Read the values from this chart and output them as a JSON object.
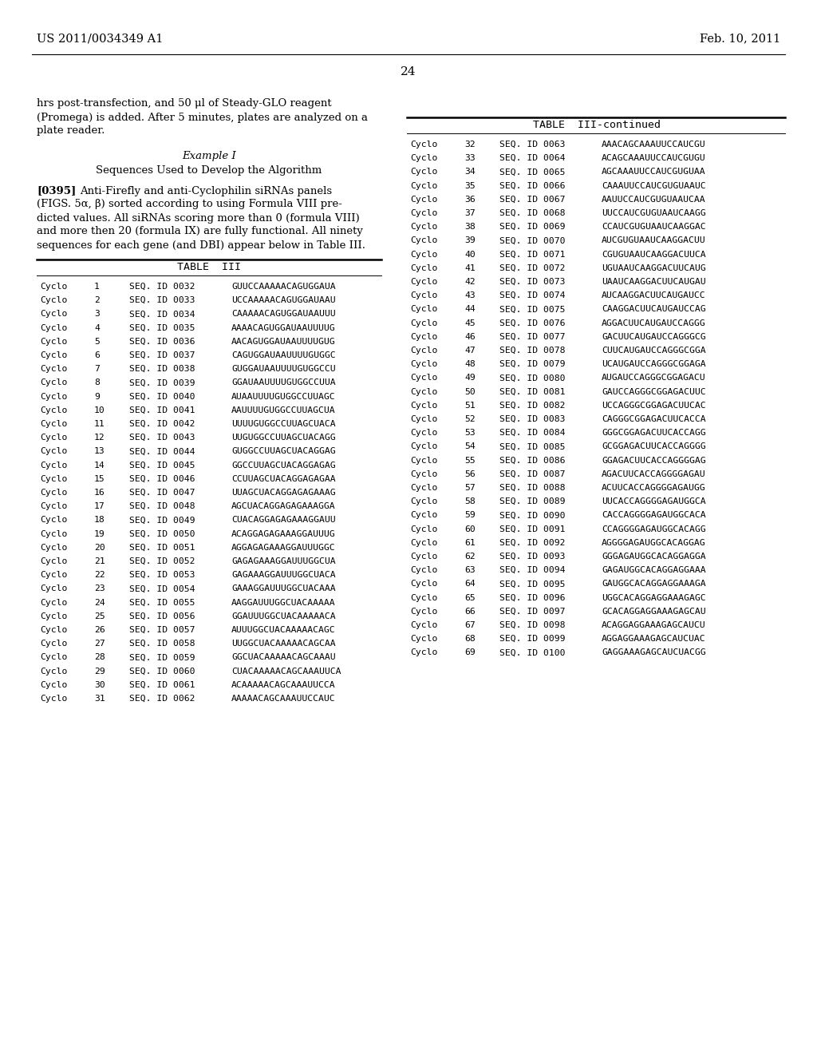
{
  "background_color": "#ffffff",
  "page_number": "24",
  "header_left": "US 2011/0034349 A1",
  "header_right": "Feb. 10, 2011",
  "left_table_rows": [
    [
      "Cyclo",
      "1",
      "SEQ. ID 0032",
      "GUUCCAAAAACAGUGGAUA"
    ],
    [
      "Cyclo",
      "2",
      "SEQ. ID 0033",
      "UCCAAAAACAGUGGAUAAU"
    ],
    [
      "Cyclo",
      "3",
      "SEQ. ID 0034",
      "CAAAAACAGUGGAUAAUUU"
    ],
    [
      "Cyclo",
      "4",
      "SEQ. ID 0035",
      "AAAACAGUGGAUAAUUUUG"
    ],
    [
      "Cyclo",
      "5",
      "SEQ. ID 0036",
      "AACAGUGGAUAAUUUUGUG"
    ],
    [
      "Cyclo",
      "6",
      "SEQ. ID 0037",
      "CAGUGGAUAAUUUUGUGGC"
    ],
    [
      "Cyclo",
      "7",
      "SEQ. ID 0038",
      "GUGGAUAAUUUUGUGGCCU"
    ],
    [
      "Cyclo",
      "8",
      "SEQ. ID 0039",
      "GGAUAAUUUUGUGGCCUUA"
    ],
    [
      "Cyclo",
      "9",
      "SEQ. ID 0040",
      "AUAAUUUUGUGGCCUUAGC"
    ],
    [
      "Cyclo",
      "10",
      "SEQ. ID 0041",
      "AAUUUUGUGGCCUUAGCUA"
    ],
    [
      "Cyclo",
      "11",
      "SEQ. ID 0042",
      "UUUUGUGGCCUUAGCUACA"
    ],
    [
      "Cyclo",
      "12",
      "SEQ. ID 0043",
      "UUGUGGCCUUAGCUACAGG"
    ],
    [
      "Cyclo",
      "13",
      "SEQ. ID 0044",
      "GUGGCCUUAGCUACAGGAG"
    ],
    [
      "Cyclo",
      "14",
      "SEQ. ID 0045",
      "GGCCUUAGCUACAGGAGAG"
    ],
    [
      "Cyclo",
      "15",
      "SEQ. ID 0046",
      "CCUUAGCUACAGGAGAGAA"
    ],
    [
      "Cyclo",
      "16",
      "SEQ. ID 0047",
      "UUAGCUACAGGAGAGAAAG"
    ],
    [
      "Cyclo",
      "17",
      "SEQ. ID 0048",
      "AGCUACAGGAGAGAAAGGA"
    ],
    [
      "Cyclo",
      "18",
      "SEQ. ID 0049",
      "CUACAGGAGAGAAAGGAUU"
    ],
    [
      "Cyclo",
      "19",
      "SEQ. ID 0050",
      "ACAGGAGAGAAAGGAUUUG"
    ],
    [
      "Cyclo",
      "20",
      "SEQ. ID 0051",
      "AGGAGAGAAAGGAUUUGGC"
    ],
    [
      "Cyclo",
      "21",
      "SEQ. ID 0052",
      "GAGAGAAAGGAUUUGGCUA"
    ],
    [
      "Cyclo",
      "22",
      "SEQ. ID 0053",
      "GAGAAAGGAUUUGGCUACA"
    ],
    [
      "Cyclo",
      "23",
      "SEQ. ID 0054",
      "GAAAGGAUUUGGCUACAAA"
    ],
    [
      "Cyclo",
      "24",
      "SEQ. ID 0055",
      "AAGGAUUUGGCUACAAAAA"
    ],
    [
      "Cyclo",
      "25",
      "SEQ. ID 0056",
      "GGAUUUGGCUACAAAAACA"
    ],
    [
      "Cyclo",
      "26",
      "SEQ. ID 0057",
      "AUUUGGCUACAAAAACAGC"
    ],
    [
      "Cyclo",
      "27",
      "SEQ. ID 0058",
      "UUGGCUACAAAAACAGCAA"
    ],
    [
      "Cyclo",
      "28",
      "SEQ. ID 0059",
      "GGCUACAAAAACAGCAAAU"
    ],
    [
      "Cyclo",
      "29",
      "SEQ. ID 0060",
      "CUACAAAAACAGCAAAUUCA"
    ],
    [
      "Cyclo",
      "30",
      "SEQ. ID 0061",
      "ACAAAAACAGCAAAUUCCA"
    ],
    [
      "Cyclo",
      "31",
      "SEQ. ID 0062",
      "AAAAACAGCAAAUUCCAUC"
    ]
  ],
  "right_table_rows": [
    [
      "Cyclo",
      "32",
      "SEQ. ID 0063",
      "AAACAGCAAAUUCCAUCGU"
    ],
    [
      "Cyclo",
      "33",
      "SEQ. ID 0064",
      "ACAGCAAAUUCCAUCGUGU"
    ],
    [
      "Cyclo",
      "34",
      "SEQ. ID 0065",
      "AGCAAAUUCCAUCGUGUAA"
    ],
    [
      "Cyclo",
      "35",
      "SEQ. ID 0066",
      "CAAAUUCCAUCGUGUAAUC"
    ],
    [
      "Cyclo",
      "36",
      "SEQ. ID 0067",
      "AAUUCCAUCGUGUAAUCAA"
    ],
    [
      "Cyclo",
      "37",
      "SEQ. ID 0068",
      "UUCCAUCGUGUAAUCAAGG"
    ],
    [
      "Cyclo",
      "38",
      "SEQ. ID 0069",
      "CCAUCGUGUAAUCAAGGAC"
    ],
    [
      "Cyclo",
      "39",
      "SEQ. ID 0070",
      "AUCGUGUAAUCAAGGACUU"
    ],
    [
      "Cyclo",
      "40",
      "SEQ. ID 0071",
      "CGUGUAAUCAAGGACUUCA"
    ],
    [
      "Cyclo",
      "41",
      "SEQ. ID 0072",
      "UGUAAUCAAGGACUUCAUG"
    ],
    [
      "Cyclo",
      "42",
      "SEQ. ID 0073",
      "UAAUCAAGGACUUCAUGAU"
    ],
    [
      "Cyclo",
      "43",
      "SEQ. ID 0074",
      "AUCAAGGACUUCAUGAUCC"
    ],
    [
      "Cyclo",
      "44",
      "SEQ. ID 0075",
      "CAAGGACUUCAUGAUCCAG"
    ],
    [
      "Cyclo",
      "45",
      "SEQ. ID 0076",
      "AGGACUUCAUGAUCCAGGG"
    ],
    [
      "Cyclo",
      "46",
      "SEQ. ID 0077",
      "GACUUCAUGAUCCAGGGCG"
    ],
    [
      "Cyclo",
      "47",
      "SEQ. ID 0078",
      "CUUCAUGAUCCAGGGCGGA"
    ],
    [
      "Cyclo",
      "48",
      "SEQ. ID 0079",
      "UCAUGAUCCAGGGCGGAGA"
    ],
    [
      "Cyclo",
      "49",
      "SEQ. ID 0080",
      "AUGAUCCAGGGCGGAGACU"
    ],
    [
      "Cyclo",
      "50",
      "SEQ. ID 0081",
      "GAUCCAGGGCGGAGACUUC"
    ],
    [
      "Cyclo",
      "51",
      "SEQ. ID 0082",
      "UCCAGGGCGGAGACUUCAC"
    ],
    [
      "Cyclo",
      "52",
      "SEQ. ID 0083",
      "CAGGGCGGAGACUUCACCA"
    ],
    [
      "Cyclo",
      "53",
      "SEQ. ID 0084",
      "GGGCGGAGACUUCACCAGG"
    ],
    [
      "Cyclo",
      "54",
      "SEQ. ID 0085",
      "GCGGAGACUUCACCAGGGG"
    ],
    [
      "Cyclo",
      "55",
      "SEQ. ID 0086",
      "GGAGACUUCACCAGGGGAG"
    ],
    [
      "Cyclo",
      "56",
      "SEQ. ID 0087",
      "AGACUUCACCAGGGGAGAU"
    ],
    [
      "Cyclo",
      "57",
      "SEQ. ID 0088",
      "ACUUCACCAGGGGAGAUGG"
    ],
    [
      "Cyclo",
      "58",
      "SEQ. ID 0089",
      "UUCACCAGGGGAGAUGGCA"
    ],
    [
      "Cyclo",
      "59",
      "SEQ. ID 0090",
      "CACCAGGGGAGAUGGCACA"
    ],
    [
      "Cyclo",
      "60",
      "SEQ. ID 0091",
      "CCAGGGGAGAUGGCACAGG"
    ],
    [
      "Cyclo",
      "61",
      "SEQ. ID 0092",
      "AGGGGAGAUGGCACAGGAG"
    ],
    [
      "Cyclo",
      "62",
      "SEQ. ID 0093",
      "GGGAGAUGGCACAGGAGGA"
    ],
    [
      "Cyclo",
      "63",
      "SEQ. ID 0094",
      "GAGAUGGCACAGGAGGAAA"
    ],
    [
      "Cyclo",
      "64",
      "SEQ. ID 0095",
      "GAUGGCACAGGAGGAAAGA"
    ],
    [
      "Cyclo",
      "65",
      "SEQ. ID 0096",
      "UGGCACAGGAGGAAAGAGC"
    ],
    [
      "Cyclo",
      "66",
      "SEQ. ID 0097",
      "GCACAGGAGGAAAGAGCAU"
    ],
    [
      "Cyclo",
      "67",
      "SEQ. ID 0098",
      "ACAGGAGGAAAGAGCAUCU"
    ],
    [
      "Cyclo",
      "68",
      "SEQ. ID 0099",
      "AGGAGGAAAGAGCAUCUAC"
    ],
    [
      "Cyclo",
      "69",
      "SEQ. ID 0100",
      "GAGGAAAGAGCAUCUACGG"
    ]
  ],
  "para_lines": [
    "hrs post-transfection, and 50 μl of Steady-GLO reagent",
    "(Promega) is added. After 5 minutes, plates are analyzed on a",
    "plate reader."
  ],
  "example_title": "Example I",
  "section_title": "Sequences Used to Develop the Algorithm",
  "para2_prefix": "[0395]",
  "para2_lines": [
    "Anti-Firefly and anti-Cyclophilin siRNAs panels",
    "(FIGS. 5α, β) sorted according to using Formula VIII pre-",
    "dicted values. All siRNAs scoring more than 0 (formula VIII)",
    "and more then 20 (formula IX) are fully functional. All ninety",
    "sequences for each gene (and DBI) appear below in Table III."
  ],
  "table_left_title": "TABLE  III",
  "table_right_title": "TABLE  III-continued"
}
